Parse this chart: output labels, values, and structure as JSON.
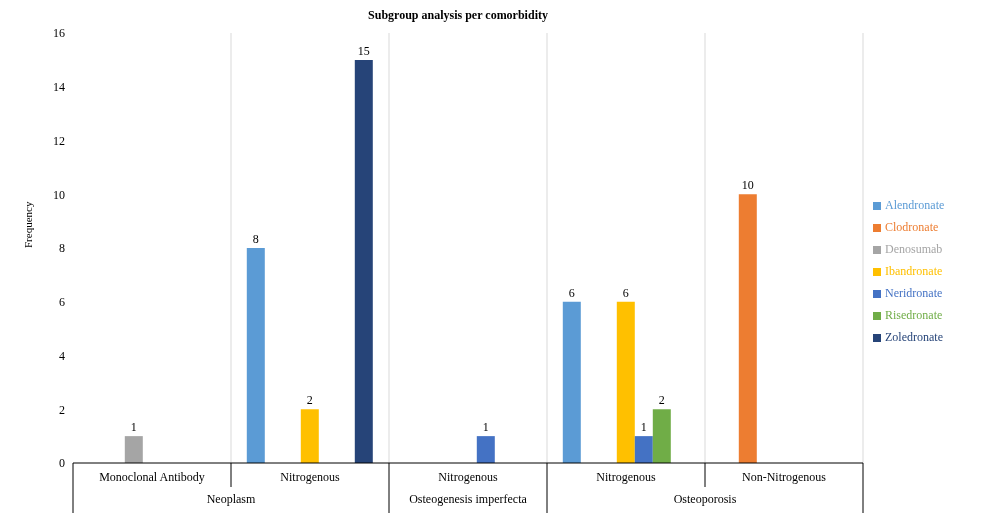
{
  "chart_data": {
    "type": "bar",
    "title": "Subgroup analysis per comorbidity",
    "ylabel": "Frequency",
    "categories": [
      "Monoclonal Antibody",
      "Nitrogenous",
      "Nitrogenous",
      "Nitrogenous",
      "Non-Nitrogenous"
    ],
    "annotations": [
      "Neoplasm",
      "Osteogenesis imperfecta",
      "Osteoporosis"
    ],
    "series": [
      {
        "name": "Alendronate",
        "color": "#5b9bd5",
        "values": [
          null,
          8,
          null,
          6,
          null
        ]
      },
      {
        "name": "Clodronate",
        "color": "#ed7d31",
        "values": [
          null,
          null,
          null,
          null,
          10
        ]
      },
      {
        "name": "Denosumab",
        "color": "#a5a5a5",
        "values": [
          1,
          null,
          null,
          null,
          null
        ]
      },
      {
        "name": "Ibandronate",
        "color": "#ffc000",
        "values": [
          null,
          2,
          null,
          6,
          null
        ]
      },
      {
        "name": "Neridronate",
        "color": "#4472c4",
        "values": [
          null,
          null,
          1,
          1,
          null
        ]
      },
      {
        "name": "Risedronate",
        "color": "#70ad47",
        "values": [
          null,
          null,
          null,
          2,
          null
        ]
      },
      {
        "name": "Zoledronate",
        "color": "#264478",
        "values": [
          null,
          15,
          null,
          null,
          null
        ]
      }
    ],
    "ylim": [
      0,
      16
    ],
    "yticks": [
      0,
      2,
      4,
      6,
      8,
      10,
      12,
      14,
      16
    ],
    "grid": "x",
    "legend": "right",
    "data_labels": true
  }
}
